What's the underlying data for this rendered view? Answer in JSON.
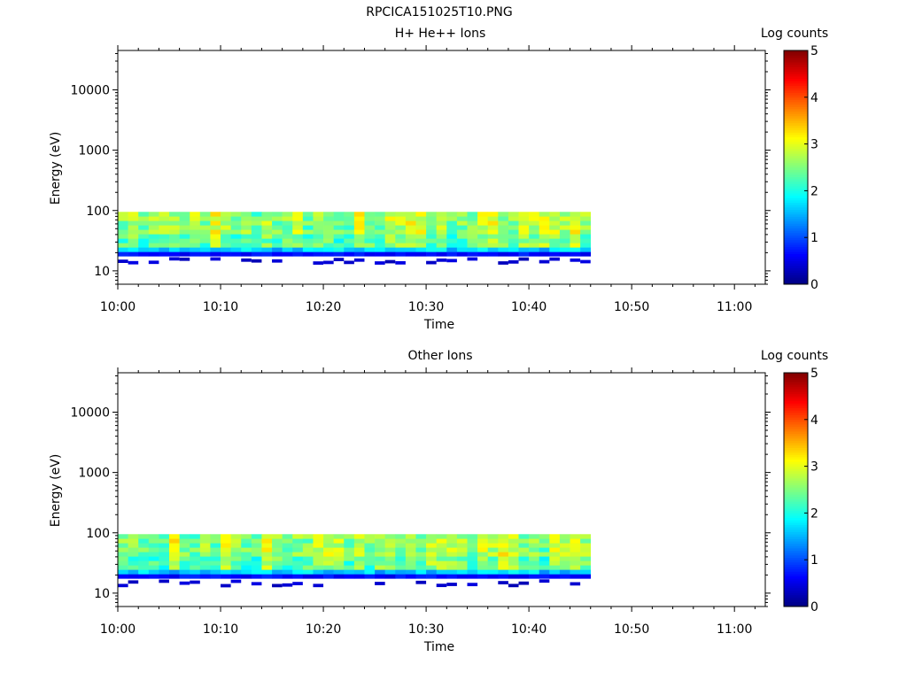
{
  "figure_title": "RPCICA151025T10.PNG",
  "chart_data": [
    {
      "type": "heatmap",
      "title": "H+ He++ Ions",
      "xlabel": "Time",
      "ylabel": "Energy (eV)",
      "x_ticks": [
        "10:00",
        "10:10",
        "10:20",
        "10:30",
        "10:40",
        "10:50",
        "11:00"
      ],
      "xlim": [
        "10:00",
        "11:03"
      ],
      "y_scale": "log",
      "y_ticks": [
        "10",
        "100",
        "1000",
        "10000"
      ],
      "ylim": [
        6,
        45000
      ],
      "colorbar": {
        "label": "Log counts",
        "range": [
          0,
          5
        ],
        "ticks": [
          "0",
          "1",
          "2",
          "3",
          "4",
          "5"
        ],
        "colormap": "jet"
      },
      "data_coverage": {
        "time_start": "10:00",
        "time_end": "10:46",
        "energy_min_eV": 13,
        "energy_max_eV": 95
      },
      "seed": 7
    },
    {
      "type": "heatmap",
      "title": "Other Ions",
      "xlabel": "Time",
      "ylabel": "Energy (eV)",
      "x_ticks": [
        "10:00",
        "10:10",
        "10:20",
        "10:30",
        "10:40",
        "10:50",
        "11:00"
      ],
      "xlim": [
        "10:00",
        "11:03"
      ],
      "y_scale": "log",
      "y_ticks": [
        "10",
        "100",
        "1000",
        "10000"
      ],
      "ylim": [
        6,
        45000
      ],
      "colorbar": {
        "label": "Log counts",
        "range": [
          0,
          5
        ],
        "ticks": [
          "0",
          "1",
          "2",
          "3",
          "4",
          "5"
        ],
        "colormap": "jet"
      },
      "data_coverage": {
        "time_start": "10:00",
        "time_end": "10:46",
        "energy_min_eV": 12,
        "energy_max_eV": 95
      },
      "seed": 23
    }
  ]
}
